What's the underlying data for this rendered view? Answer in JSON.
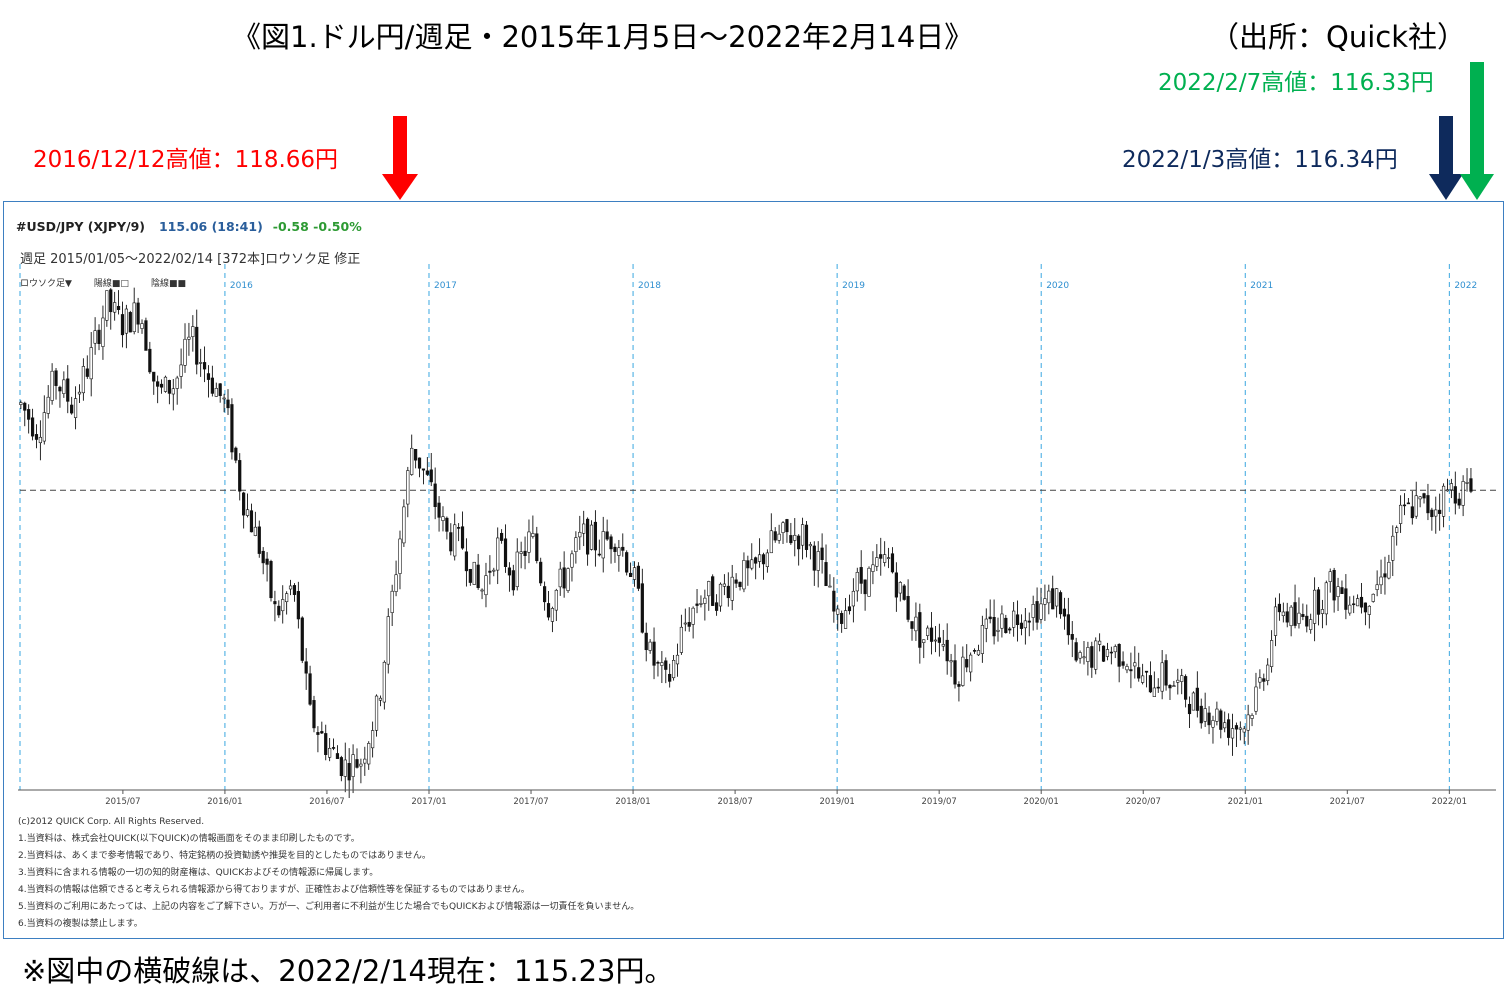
{
  "title": "《図1.ドル円/週足・2015年1月5日～2022年2月14日》",
  "source": "（出所：Quick社）",
  "annotations": [
    {
      "text": "2016/12/12高値：118.66円",
      "color": "#ff0000"
    },
    {
      "text": "2022/1/3高値：116.34円",
      "color": "#0e2a5c"
    },
    {
      "text": "2022/2/7高値：116.33円",
      "color": "#00b050"
    }
  ],
  "panel": {
    "ticker": "#USD/JPY (XJPY/9)",
    "last": "115.06 (18:41)",
    "change": "-0.58  -0.50%",
    "period": "週足  2015/01/05～2022/02/14 [372本]ロウソク足 修正",
    "legend": [
      "ロウソク足▼",
      "陽線■□",
      "陰線■■"
    ],
    "disclaimer": [
      "(c)2012 QUICK Corp. All Rights Reserved.",
      "1.当資料は、株式会社QUICK(以下QUICK)の情報画面をそのまま印刷したものです。",
      "2.当資料は、あくまで参考情報であり、特定銘柄の投資勧誘や推奨を目的としたものではありません。",
      "3.当資料に含まれる情報の一切の知的財産権は、QUICKおよびその情報源に帰属します。",
      "4.当資料の情報は信頼できると考えられる情報源から得ておりますが、正確性および信頼性等を保証するものではありません。",
      "5.当資料のご利用にあたっては、上記の内容をご了解下さい。万が一、ご利用者に不利益が生じた場合でもQUICKおよび情報源は一切責任を負いません。",
      "6.当資料の複製は禁止します。"
    ]
  },
  "footnote": "※図中の横破線は、2022/2/14現在：115.23円。",
  "chart_data": {
    "type": "candlestick",
    "y_unit": "円",
    "ylim": [
      100.5,
      126.0
    ],
    "reference_line": 115.23,
    "year_markers": [
      "2016",
      "2017",
      "2018",
      "2019",
      "2020",
      "2021",
      "2022"
    ],
    "x_ticks": [
      "2015/07",
      "2016/01",
      "2016/07",
      "2017/01",
      "2017/07",
      "2018/01",
      "2018/07",
      "2019/01",
      "2019/07",
      "2020/01",
      "2020/07",
      "2021/01",
      "2021/07",
      "2022/01"
    ],
    "path_points": [
      [
        "2015/01",
        119.5
      ],
      [
        "2015/02",
        118.2
      ],
      [
        "2015/03",
        120.8
      ],
      [
        "2015/04",
        119.5
      ],
      [
        "2015/05",
        121.5
      ],
      [
        "2015/06",
        124.5
      ],
      [
        "2015/07",
        123.5
      ],
      [
        "2015/08",
        124.3
      ],
      [
        "2015/09",
        120.0
      ],
      [
        "2015/10",
        120.5
      ],
      [
        "2015/11",
        122.8
      ],
      [
        "2015/12",
        121.0
      ],
      [
        "2016/01",
        119.5
      ],
      [
        "2016/02",
        115.0
      ],
      [
        "2016/03",
        112.5
      ],
      [
        "2016/04",
        109.0
      ],
      [
        "2016/05",
        110.5
      ],
      [
        "2016/06",
        104.0
      ],
      [
        "2016/07",
        102.5
      ],
      [
        "2016/08",
        101.5
      ],
      [
        "2016/09",
        101.8
      ],
      [
        "2016/10",
        104.5
      ],
      [
        "2016/11",
        111.0
      ],
      [
        "2016/12",
        117.5
      ],
      [
        "2017/01",
        115.5
      ],
      [
        "2017/02",
        113.0
      ],
      [
        "2017/03",
        112.5
      ],
      [
        "2017/04",
        110.0
      ],
      [
        "2017/05",
        112.5
      ],
      [
        "2017/06",
        111.0
      ],
      [
        "2017/07",
        113.0
      ],
      [
        "2017/08",
        109.5
      ],
      [
        "2017/09",
        111.0
      ],
      [
        "2017/10",
        113.0
      ],
      [
        "2017/11",
        112.5
      ],
      [
        "2017/12",
        113.0
      ],
      [
        "2018/01",
        111.0
      ],
      [
        "2018/02",
        107.0
      ],
      [
        "2018/03",
        105.5
      ],
      [
        "2018/04",
        108.5
      ],
      [
        "2018/05",
        110.0
      ],
      [
        "2018/06",
        110.0
      ],
      [
        "2018/07",
        111.0
      ],
      [
        "2018/08",
        111.0
      ],
      [
        "2018/09",
        112.5
      ],
      [
        "2018/10",
        113.0
      ],
      [
        "2018/11",
        113.0
      ],
      [
        "2018/12",
        111.5
      ],
      [
        "2019/01",
        108.5
      ],
      [
        "2019/02",
        110.5
      ],
      [
        "2019/03",
        111.0
      ],
      [
        "2019/04",
        111.8
      ],
      [
        "2019/05",
        109.5
      ],
      [
        "2019/06",
        107.8
      ],
      [
        "2019/07",
        108.3
      ],
      [
        "2019/08",
        106.0
      ],
      [
        "2019/09",
        107.5
      ],
      [
        "2019/10",
        108.3
      ],
      [
        "2019/11",
        108.8
      ],
      [
        "2019/12",
        109.2
      ],
      [
        "2020/01",
        109.5
      ],
      [
        "2020/02",
        110.0
      ],
      [
        "2020/03",
        106.5
      ],
      [
        "2020/04",
        107.0
      ],
      [
        "2020/05",
        107.3
      ],
      [
        "2020/06",
        107.0
      ],
      [
        "2020/07",
        105.5
      ],
      [
        "2020/08",
        106.0
      ],
      [
        "2020/09",
        105.5
      ],
      [
        "2020/10",
        104.6
      ],
      [
        "2020/11",
        104.2
      ],
      [
        "2020/12",
        103.5
      ],
      [
        "2021/01",
        103.6
      ],
      [
        "2021/02",
        106.0
      ],
      [
        "2021/03",
        109.5
      ],
      [
        "2021/04",
        108.5
      ],
      [
        "2021/05",
        109.5
      ],
      [
        "2021/06",
        110.5
      ],
      [
        "2021/07",
        110.0
      ],
      [
        "2021/08",
        109.8
      ],
      [
        "2021/09",
        110.8
      ],
      [
        "2021/10",
        113.8
      ],
      [
        "2021/11",
        114.5
      ],
      [
        "2021/12",
        114.3
      ],
      [
        "2022/01",
        115.3
      ],
      [
        "2022/02",
        115.2
      ]
    ]
  }
}
